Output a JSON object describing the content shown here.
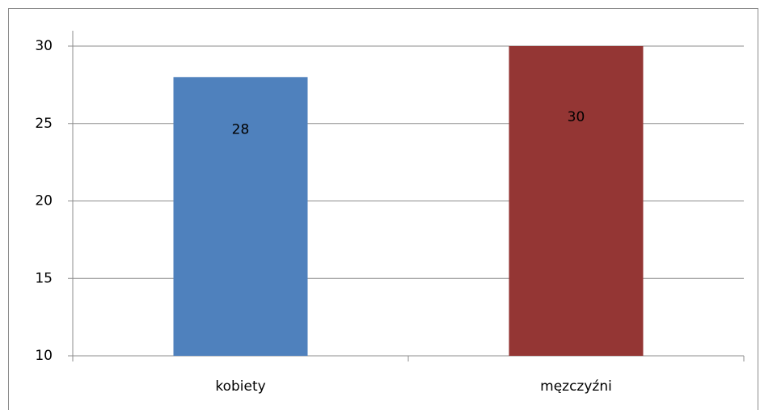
{
  "chart_data": {
    "type": "bar",
    "categories": [
      "kobiety",
      "męzczyźni"
    ],
    "values": [
      28,
      30
    ],
    "colors": [
      "#4f81bd",
      "#943634"
    ],
    "ylim": [
      10,
      30
    ],
    "yticks": [
      10,
      15,
      20,
      25,
      30
    ],
    "grid": true
  }
}
